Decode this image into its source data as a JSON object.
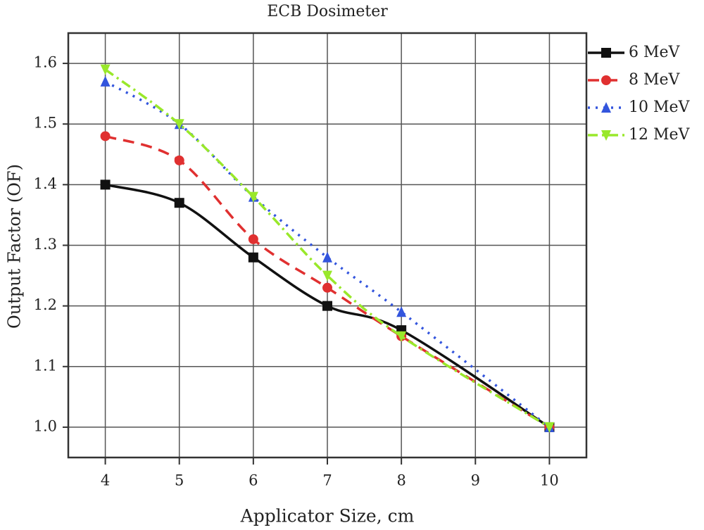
{
  "chart_data": {
    "type": "line",
    "title": "ECB Dosimeter",
    "x_label": "Applicator Size, cm",
    "y_label": "Output Factor (OF)",
    "x": [
      4,
      5,
      6,
      7,
      8,
      10
    ],
    "series": [
      {
        "name": "6 MeV",
        "color": "#111111",
        "dash": "solid",
        "marker": "square",
        "values": [
          1.4,
          1.37,
          1.28,
          1.2,
          1.16,
          1.0
        ]
      },
      {
        "name": "8 MeV",
        "color": "#e03030",
        "dash": "dashed",
        "marker": "circle",
        "values": [
          1.48,
          1.44,
          1.31,
          1.23,
          1.15,
          1.0
        ]
      },
      {
        "name": "10 MeV",
        "color": "#3355dd",
        "dash": "dotted",
        "marker": "triangle-up",
        "values": [
          1.57,
          1.5,
          1.38,
          1.28,
          1.19,
          1.0
        ]
      },
      {
        "name": "12 MeV",
        "color": "#99e82a",
        "dash": "dashdot",
        "marker": "triangle-down",
        "values": [
          1.59,
          1.5,
          1.38,
          1.25,
          1.15,
          1.0
        ]
      }
    ],
    "xlim": [
      3.5,
      10.5
    ],
    "xticks": [
      4,
      5,
      6,
      7,
      8,
      9,
      10
    ],
    "ylim": [
      0.95,
      1.65
    ],
    "yticks": [
      {
        "value": 1,
        "label": "1.0"
      },
      1.1,
      1.2,
      1.3,
      1.4,
      1.5,
      1.6
    ],
    "grid": true,
    "smooth": true,
    "legend": "outside-right"
  }
}
